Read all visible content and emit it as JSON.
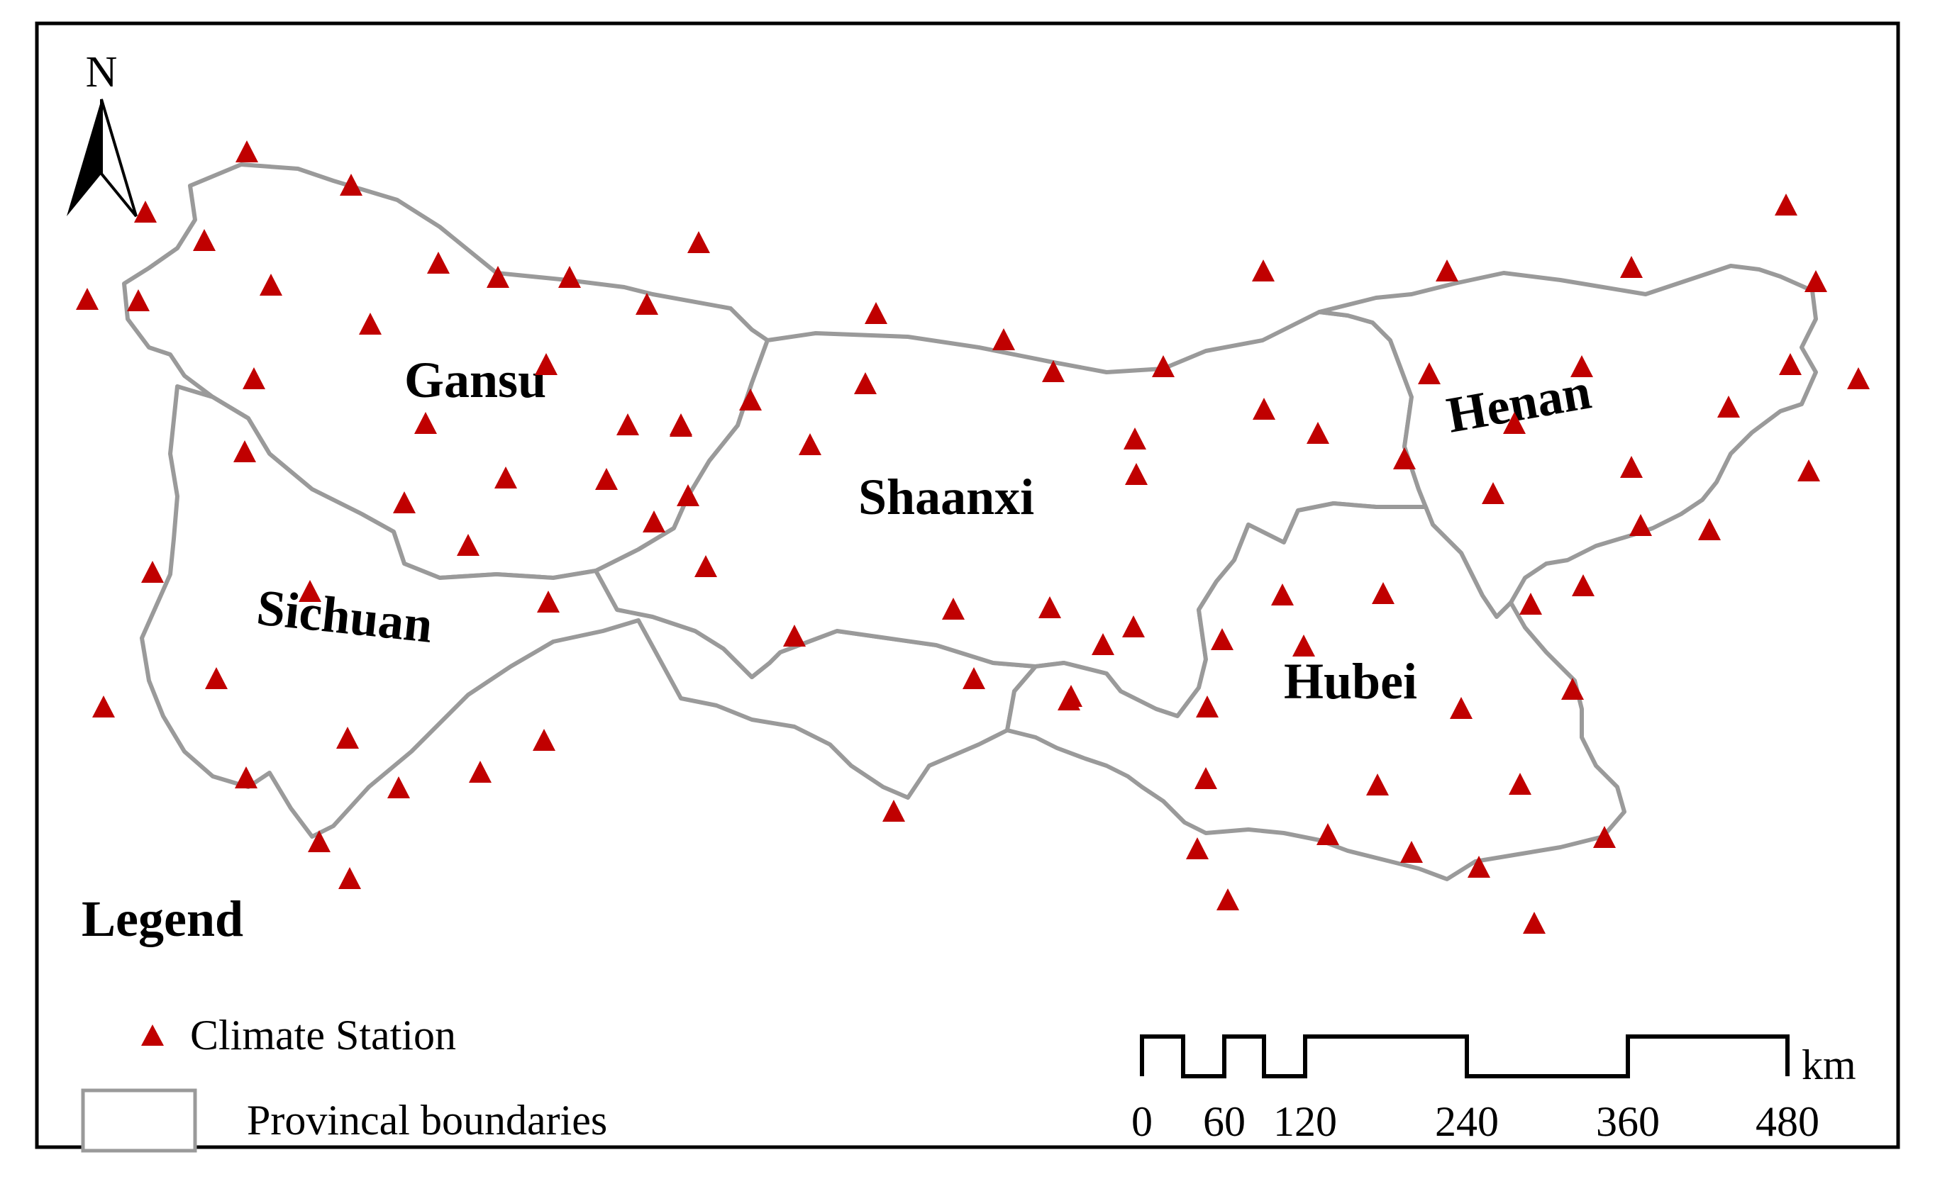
{
  "map": {
    "north_label": "N",
    "provinces": {
      "gansu": "Gansu",
      "shaanxi": "Shaanxi",
      "henan": "Henan",
      "sichuan": "Sichuan",
      "hubei": "Hubei"
    },
    "station_color": "#c00000",
    "boundary_color": "#9a9a9a"
  },
  "legend": {
    "title": "Legend",
    "climate_station": "Climate Station",
    "provincial_boundaries": "Provincal boundaries"
  },
  "scale_bar": {
    "unit": "km",
    "ticks": [
      "0",
      "60",
      "120",
      "240",
      "360",
      "480"
    ]
  }
}
